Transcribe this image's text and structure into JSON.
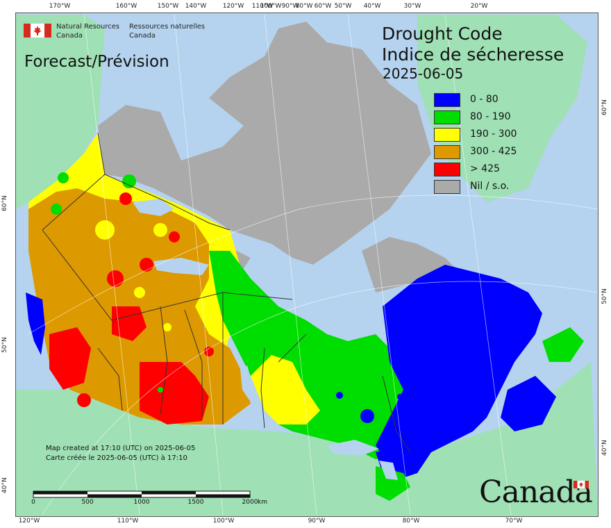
{
  "agency": {
    "name_en": "Natural Resources",
    "country_en": "Canada",
    "name_fr": "Ressources naturelles",
    "country_fr": "Canada"
  },
  "forecast_label": "Forecast/Prévision",
  "title_en": "Drought Code",
  "title_fr": "Indice de sécheresse",
  "date": "2025-06-05",
  "legend": [
    {
      "label": "0 - 80",
      "color": "#0000ff"
    },
    {
      "label": "80 - 190",
      "color": "#00dd00"
    },
    {
      "label": "190 - 300",
      "color": "#ffff00"
    },
    {
      "label": "300 - 425",
      "color": "#dd9900"
    },
    {
      "label": "> 425",
      "color": "#ff0000"
    },
    {
      "label": "Nil / s.o.",
      "color": "#aaaaaa"
    }
  ],
  "credits": {
    "en": "Map created at 17:10 (UTC) on 2025-06-05",
    "fr": "Carte créée le 2025-06-05 (UTC) à 17:10"
  },
  "scale_bar": {
    "labels": [
      "0",
      "500",
      "1000",
      "1500",
      "2000"
    ],
    "unit": "km"
  },
  "wordmark": "Canada",
  "ticks": {
    "top": [
      "170°W",
      "160°W",
      "150°W",
      "140°W",
      "120°W",
      "110°W",
      "100°W",
      "90°W",
      "80°W",
      "60°W",
      "50°W",
      "40°W",
      "30°W",
      "20°W"
    ],
    "bottom": [
      "120°W",
      "110°W",
      "100°W",
      "90°W",
      "80°W",
      "70°W"
    ],
    "left": [
      "60°N",
      "50°N",
      "40°N"
    ],
    "right": [
      "60°N",
      "50°N",
      "40°N"
    ]
  },
  "colors": {
    "water": "#b5d3ef",
    "land_outside": "#9fe0b5",
    "no_data": "#aaaaaa"
  }
}
